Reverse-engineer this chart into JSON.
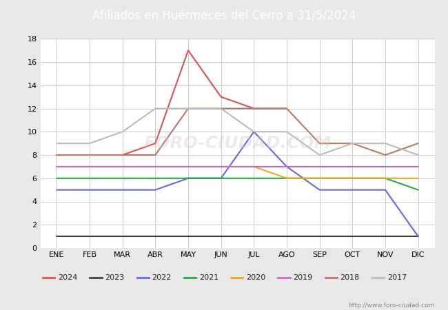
{
  "title": "Afiliados en Huérmeces del Cerro a 31/5/2024",
  "months": [
    "ENE",
    "FEB",
    "MAR",
    "ABR",
    "MAY",
    "JUN",
    "JUL",
    "AGO",
    "SEP",
    "OCT",
    "NOV",
    "DIC"
  ],
  "ylim": [
    0,
    18
  ],
  "yticks": [
    0,
    2,
    4,
    6,
    8,
    10,
    12,
    14,
    16,
    18
  ],
  "series": {
    "2024": {
      "color": "#e05050",
      "data": [
        8,
        8,
        8,
        9,
        17,
        13,
        12,
        12,
        null,
        null,
        null,
        null
      ]
    },
    "2023": {
      "color": "#404040",
      "data": [
        1,
        1,
        1,
        1,
        1,
        1,
        1,
        1,
        1,
        1,
        1,
        1
      ]
    },
    "2022": {
      "color": "#6666dd",
      "data": [
        5,
        5,
        5,
        5,
        6,
        6,
        10,
        7,
        5,
        5,
        5,
        1
      ]
    },
    "2021": {
      "color": "#22aa44",
      "data": [
        6,
        6,
        6,
        6,
        6,
        6,
        6,
        6,
        6,
        6,
        6,
        5
      ]
    },
    "2020": {
      "color": "#f0a820",
      "data": [
        7,
        7,
        7,
        7,
        7,
        7,
        7,
        6,
        6,
        6,
        6,
        6
      ]
    },
    "2019": {
      "color": "#cc66cc",
      "data": [
        7,
        7,
        7,
        7,
        7,
        7,
        7,
        7,
        7,
        7,
        7,
        7
      ]
    },
    "2018": {
      "color": "#bb7766",
      "data": [
        8,
        8,
        8,
        8,
        12,
        12,
        12,
        12,
        9,
        9,
        8,
        9
      ]
    },
    "2017": {
      "color": "#bbbbbb",
      "data": [
        9,
        9,
        10,
        12,
        12,
        12,
        10,
        10,
        8,
        9,
        9,
        8
      ]
    }
  },
  "legend_order": [
    "2024",
    "2023",
    "2022",
    "2021",
    "2020",
    "2019",
    "2018",
    "2017"
  ],
  "watermark": "http://www.foro-ciudad.com",
  "title_bg": "#4472c4",
  "title_fg": "#ffffff",
  "bg_color": "#e8e8e8",
  "plot_bg_color": "#ffffff",
  "grid_color": "#cccccc"
}
